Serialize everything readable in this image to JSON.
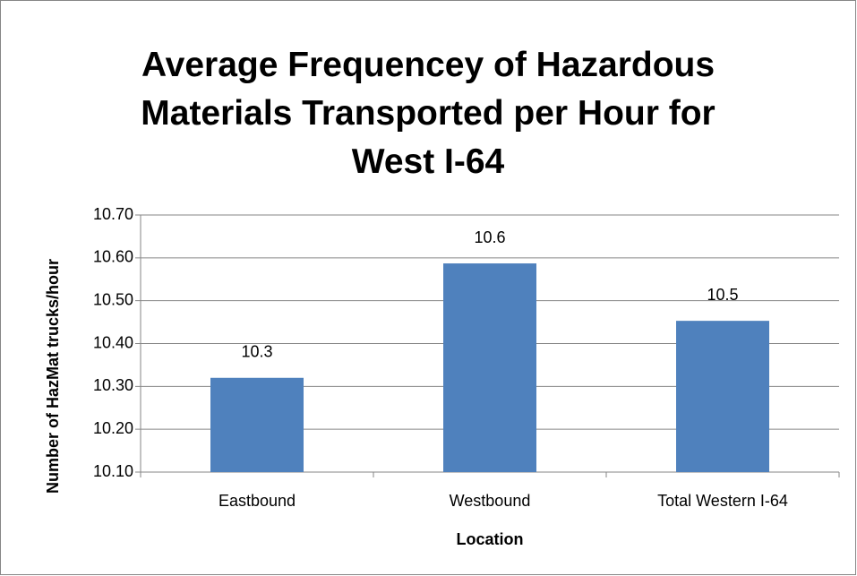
{
  "chart_data": {
    "type": "bar",
    "title": "Average Frequencey of Hazardous Materials Transported per Hour for West I-64",
    "x_label": "Location",
    "y_label": "Number of HazMat trucks/hour",
    "categories": [
      "Eastbound",
      "Westbound",
      "Total Western I-64"
    ],
    "values": [
      10.32,
      10.587,
      10.453
    ],
    "value_labels": [
      "10.3",
      "10.6",
      "10.5"
    ],
    "color": "#4f81bd",
    "ylim": [
      10.1,
      10.7
    ],
    "yticks": [
      {
        "value": 10.1,
        "label": "10.10"
      },
      {
        "value": 10.2,
        "label": "10.20"
      },
      {
        "value": 10.3,
        "label": "10.30"
      },
      {
        "value": 10.4,
        "label": "10.40"
      },
      {
        "value": 10.5,
        "label": "10.50"
      },
      {
        "value": 10.6,
        "label": "10.60"
      },
      {
        "value": 10.7,
        "label": "10.70"
      }
    ],
    "grid": true
  }
}
